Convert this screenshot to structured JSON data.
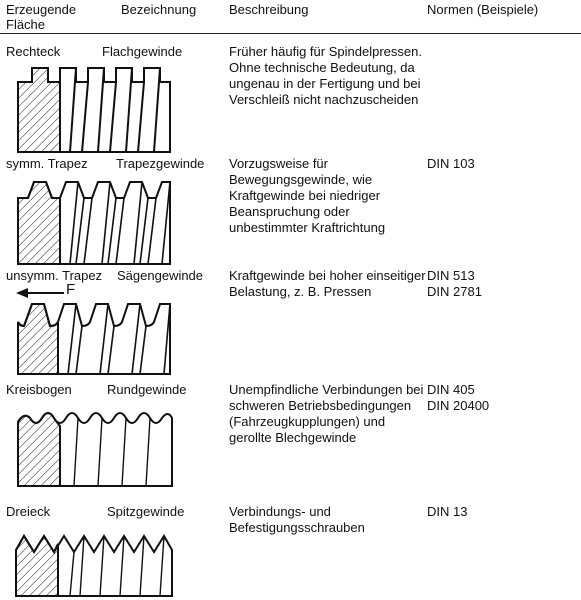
{
  "header": {
    "col1": "Erzeugende Fläche",
    "col2": "Bezeichnung",
    "col3": "Beschreibung",
    "col4": "Normen (Beispiele)"
  },
  "rows": [
    {
      "flaeche": "Rechteck",
      "bezeichnung": "Flachgewinde",
      "beschreibung": "Früher häufig für Spindelpressen. Ohne technische Bedeutung, da ungenau in der Fertigung und bei Verschleiß nicht nachzuscheiden",
      "normen": [
        "",
        ""
      ],
      "icon": "flat-thread-profile-icon"
    },
    {
      "flaeche": "symm. Trapez",
      "bezeichnung": "Trapezgewinde",
      "beschreibung": "Vorzugsweise für Bewegungsgewinde, wie Kraftgewinde bei niedriger Beanspruchung oder unbestimmter Kraftrichtung",
      "normen": [
        "DIN 103",
        ""
      ],
      "icon": "trapezoidal-thread-profile-icon"
    },
    {
      "flaeche": "unsymm. Trapez",
      "bezeichnung": "Sägengewinde",
      "beschreibung": "Kraftgewinde bei hoher einseitiger Belastung, z. B. Pressen",
      "normen": [
        "DIN 513",
        "DIN 2781"
      ],
      "force_label": "F",
      "icon": "buttress-thread-profile-icon"
    },
    {
      "flaeche": "Kreisbogen",
      "bezeichnung": "Rundgewinde",
      "beschreibung": "Unempfindliche Verbindungen bei schweren Betriebsbedingungen (Fahrzeugkupplungen) und gerollte Blechgewinde",
      "normen": [
        "DIN 405",
        "DIN 20400"
      ],
      "icon": "round-thread-profile-icon"
    },
    {
      "flaeche": "Dreieck",
      "bezeichnung": "Spitzgewinde",
      "beschreibung": "Verbindungs- und Befestigungsschrauben",
      "normen": [
        "DIN 13",
        ""
      ],
      "icon": "v-thread-profile-icon"
    }
  ]
}
